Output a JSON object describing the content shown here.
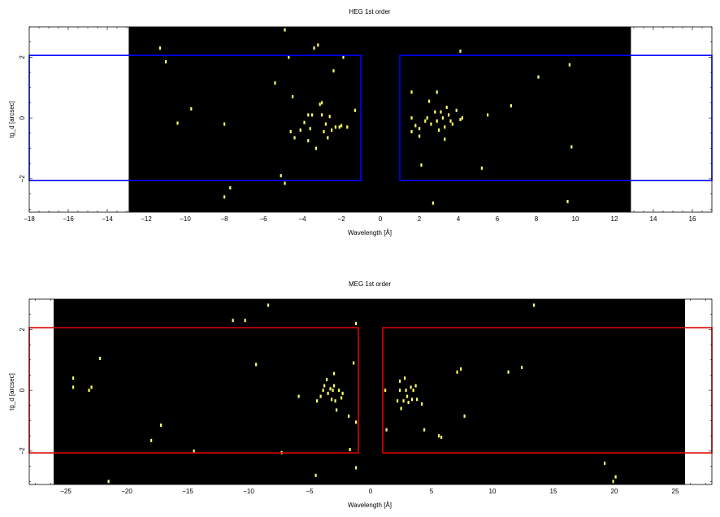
{
  "chart_data": [
    {
      "type": "scatter",
      "title": "HEG 1st order",
      "xlabel": "Wavelength [Å]",
      "ylabel": "tg_d [arcsec]",
      "xlim": [
        -18,
        17
      ],
      "ylim": [
        -3.1,
        3.0
      ],
      "x_ticks": [
        -18,
        -16,
        -14,
        -12,
        -10,
        -8,
        -6,
        -4,
        -2,
        0,
        2,
        4,
        6,
        8,
        10,
        12,
        14,
        16
      ],
      "y_ticks": [
        -2,
        0,
        2
      ],
      "data_region": [
        -12.9,
        12.85
      ],
      "background_color": "#000000",
      "point_color": "#ffff66",
      "box_color": "#0000ff",
      "boxes": [
        {
          "x": [
            -18,
            -1.0
          ],
          "y": [
            -2.06,
            2.06
          ]
        },
        {
          "x": [
            1.0,
            17
          ],
          "y": [
            -2.06,
            2.06
          ]
        }
      ],
      "points": [
        [
          -11.3,
          2.3
        ],
        [
          -11.0,
          1.85
        ],
        [
          -10.4,
          -0.17
        ],
        [
          -9.7,
          0.3
        ],
        [
          -8.0,
          -0.2
        ],
        [
          -8.0,
          -2.6
        ],
        [
          -7.7,
          -2.3
        ],
        [
          -5.4,
          1.15
        ],
        [
          -5.1,
          -1.9
        ],
        [
          -4.9,
          2.9
        ],
        [
          -4.9,
          -2.15
        ],
        [
          -4.7,
          2.0
        ],
        [
          -4.6,
          -0.45
        ],
        [
          -4.5,
          0.7
        ],
        [
          -4.4,
          -0.65
        ],
        [
          -4.1,
          -0.4
        ],
        [
          -3.9,
          -0.15
        ],
        [
          -3.7,
          0.1
        ],
        [
          -3.7,
          -0.75
        ],
        [
          -3.6,
          -0.35
        ],
        [
          -3.5,
          0.1
        ],
        [
          -3.4,
          2.3
        ],
        [
          -3.3,
          -1.0
        ],
        [
          -3.2,
          2.4
        ],
        [
          -3.1,
          0.45
        ],
        [
          -3.0,
          0.5
        ],
        [
          -3.0,
          0.1
        ],
        [
          -2.9,
          -0.45
        ],
        [
          -2.8,
          -0.2
        ],
        [
          -2.7,
          -0.65
        ],
        [
          -2.6,
          0.05
        ],
        [
          -2.5,
          -0.4
        ],
        [
          -2.4,
          1.55
        ],
        [
          -2.3,
          -0.3
        ],
        [
          -2.1,
          -0.3
        ],
        [
          -2.0,
          -0.25
        ],
        [
          -1.9,
          2.0
        ],
        [
          -1.7,
          -0.3
        ],
        [
          -1.3,
          0.25
        ],
        [
          1.6,
          0.85
        ],
        [
          1.6,
          -0.45
        ],
        [
          1.6,
          0.0
        ],
        [
          1.8,
          -0.25
        ],
        [
          2.0,
          -0.35
        ],
        [
          2.0,
          -0.6
        ],
        [
          2.1,
          -1.55
        ],
        [
          2.3,
          -0.1
        ],
        [
          2.4,
          0.0
        ],
        [
          2.5,
          0.55
        ],
        [
          2.6,
          -0.2
        ],
        [
          2.7,
          -2.8
        ],
        [
          2.8,
          0.2
        ],
        [
          2.9,
          0.85
        ],
        [
          2.9,
          -0.1
        ],
        [
          3.0,
          -0.4
        ],
        [
          3.1,
          0.2
        ],
        [
          3.2,
          0.0
        ],
        [
          3.3,
          -0.7
        ],
        [
          3.3,
          -0.3
        ],
        [
          3.4,
          0.35
        ],
        [
          3.5,
          0.1
        ],
        [
          3.6,
          -0.1
        ],
        [
          3.7,
          -0.2
        ],
        [
          3.9,
          0.25
        ],
        [
          4.1,
          -0.05
        ],
        [
          4.1,
          2.2
        ],
        [
          4.2,
          0.0
        ],
        [
          5.2,
          -1.65
        ],
        [
          5.5,
          0.1
        ],
        [
          6.7,
          0.4
        ],
        [
          8.1,
          1.35
        ],
        [
          9.6,
          -2.75
        ],
        [
          9.7,
          1.75
        ],
        [
          9.8,
          -0.95
        ]
      ]
    },
    {
      "type": "scatter",
      "title": "MEG 1st order",
      "xlabel": "Wavelength [Å]",
      "ylabel": "tg_d [arcsec]",
      "xlim": [
        -28,
        28
      ],
      "ylim": [
        -3.1,
        3.0
      ],
      "x_ticks": [
        -25,
        -20,
        -15,
        -10,
        -5,
        0,
        5,
        10,
        15,
        20,
        25
      ],
      "y_ticks": [
        -2,
        0,
        2
      ],
      "data_region": [
        -26.0,
        25.8
      ],
      "background_color": "#000000",
      "point_color": "#ffff66",
      "box_color": "#dd0000",
      "boxes": [
        {
          "x": [
            -28,
            -1.0
          ],
          "y": [
            -2.06,
            2.06
          ]
        },
        {
          "x": [
            1.0,
            28
          ],
          "y": [
            -2.06,
            2.06
          ]
        }
      ],
      "points": [
        [
          -24.4,
          0.4
        ],
        [
          -24.4,
          0.1
        ],
        [
          -23.1,
          0.0
        ],
        [
          -22.9,
          0.1
        ],
        [
          -22.2,
          1.05
        ],
        [
          -21.5,
          -3.0
        ],
        [
          -18.0,
          -1.65
        ],
        [
          -17.2,
          -1.15
        ],
        [
          -14.5,
          -2.0
        ],
        [
          -11.3,
          2.3
        ],
        [
          -10.3,
          2.3
        ],
        [
          -9.4,
          0.85
        ],
        [
          -8.4,
          2.8
        ],
        [
          -7.3,
          -2.05
        ],
        [
          -5.9,
          -0.2
        ],
        [
          -4.5,
          -2.8
        ],
        [
          -4.4,
          -0.35
        ],
        [
          -4.1,
          -0.2
        ],
        [
          -3.9,
          0.0
        ],
        [
          -3.8,
          0.15
        ],
        [
          -3.6,
          0.35
        ],
        [
          -3.5,
          -0.1
        ],
        [
          -3.3,
          0.05
        ],
        [
          -3.2,
          -0.3
        ],
        [
          -3.1,
          0.0
        ],
        [
          -3.0,
          0.15
        ],
        [
          -3.0,
          0.55
        ],
        [
          -2.9,
          -0.35
        ],
        [
          -2.8,
          -0.65
        ],
        [
          -2.6,
          0.0
        ],
        [
          -2.4,
          -0.25
        ],
        [
          -2.3,
          -0.1
        ],
        [
          -1.8,
          -0.85
        ],
        [
          -1.7,
          -1.95
        ],
        [
          -1.4,
          0.9
        ],
        [
          -1.2,
          -1.05
        ],
        [
          -1.2,
          2.2
        ],
        [
          -1.2,
          -2.55
        ],
        [
          1.2,
          0.0
        ],
        [
          1.3,
          -1.3
        ],
        [
          2.2,
          -0.35
        ],
        [
          2.4,
          0.3
        ],
        [
          2.4,
          0.0
        ],
        [
          2.5,
          -0.6
        ],
        [
          2.7,
          -0.35
        ],
        [
          2.8,
          0.4
        ],
        [
          2.9,
          0.0
        ],
        [
          3.0,
          -0.2
        ],
        [
          3.1,
          -0.4
        ],
        [
          3.3,
          0.1
        ],
        [
          3.4,
          -0.3
        ],
        [
          3.5,
          0.0
        ],
        [
          3.7,
          0.15
        ],
        [
          3.8,
          -0.3
        ],
        [
          4.2,
          -0.45
        ],
        [
          4.4,
          -1.3
        ],
        [
          5.6,
          -1.5
        ],
        [
          5.8,
          -1.55
        ],
        [
          7.1,
          0.6
        ],
        [
          7.4,
          0.7
        ],
        [
          7.7,
          -0.85
        ],
        [
          11.3,
          0.6
        ],
        [
          12.4,
          0.75
        ],
        [
          13.4,
          2.8
        ],
        [
          19.2,
          -2.4
        ],
        [
          19.9,
          -3.0
        ],
        [
          20.1,
          -2.85
        ]
      ]
    }
  ]
}
